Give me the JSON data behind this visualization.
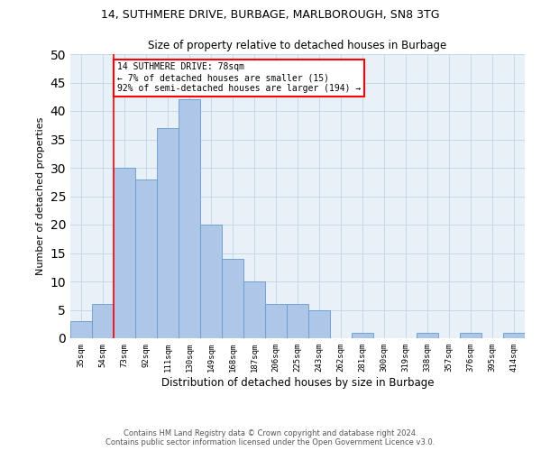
{
  "title1": "14, SUTHMERE DRIVE, BURBAGE, MARLBOROUGH, SN8 3TG",
  "title2": "Size of property relative to detached houses in Burbage",
  "xlabel": "Distribution of detached houses by size in Burbage",
  "ylabel": "Number of detached properties",
  "categories": [
    "35sqm",
    "54sqm",
    "73sqm",
    "92sqm",
    "111sqm",
    "130sqm",
    "149sqm",
    "168sqm",
    "187sqm",
    "206sqm",
    "225sqm",
    "243sqm",
    "262sqm",
    "281sqm",
    "300sqm",
    "319sqm",
    "338sqm",
    "357sqm",
    "376sqm",
    "395sqm",
    "414sqm"
  ],
  "values": [
    3,
    6,
    30,
    28,
    37,
    42,
    20,
    14,
    10,
    6,
    6,
    5,
    0,
    1,
    0,
    0,
    1,
    0,
    1,
    0,
    1
  ],
  "bar_color": "#aec6e8",
  "bar_edge_color": "#6699cc",
  "grid_color": "#c8d8e8",
  "background_color": "#e8f0f8",
  "annotation_text": "14 SUTHMERE DRIVE: 78sqm\n← 7% of detached houses are smaller (15)\n92% of semi-detached houses are larger (194) →",
  "annotation_box_color": "white",
  "annotation_box_edge": "red",
  "vline_x_index": 2,
  "vline_color": "red",
  "ylim": [
    0,
    50
  ],
  "yticks": [
    0,
    5,
    10,
    15,
    20,
    25,
    30,
    35,
    40,
    45,
    50
  ],
  "footer1": "Contains HM Land Registry data © Crown copyright and database right 2024.",
  "footer2": "Contains public sector information licensed under the Open Government Licence v3.0."
}
